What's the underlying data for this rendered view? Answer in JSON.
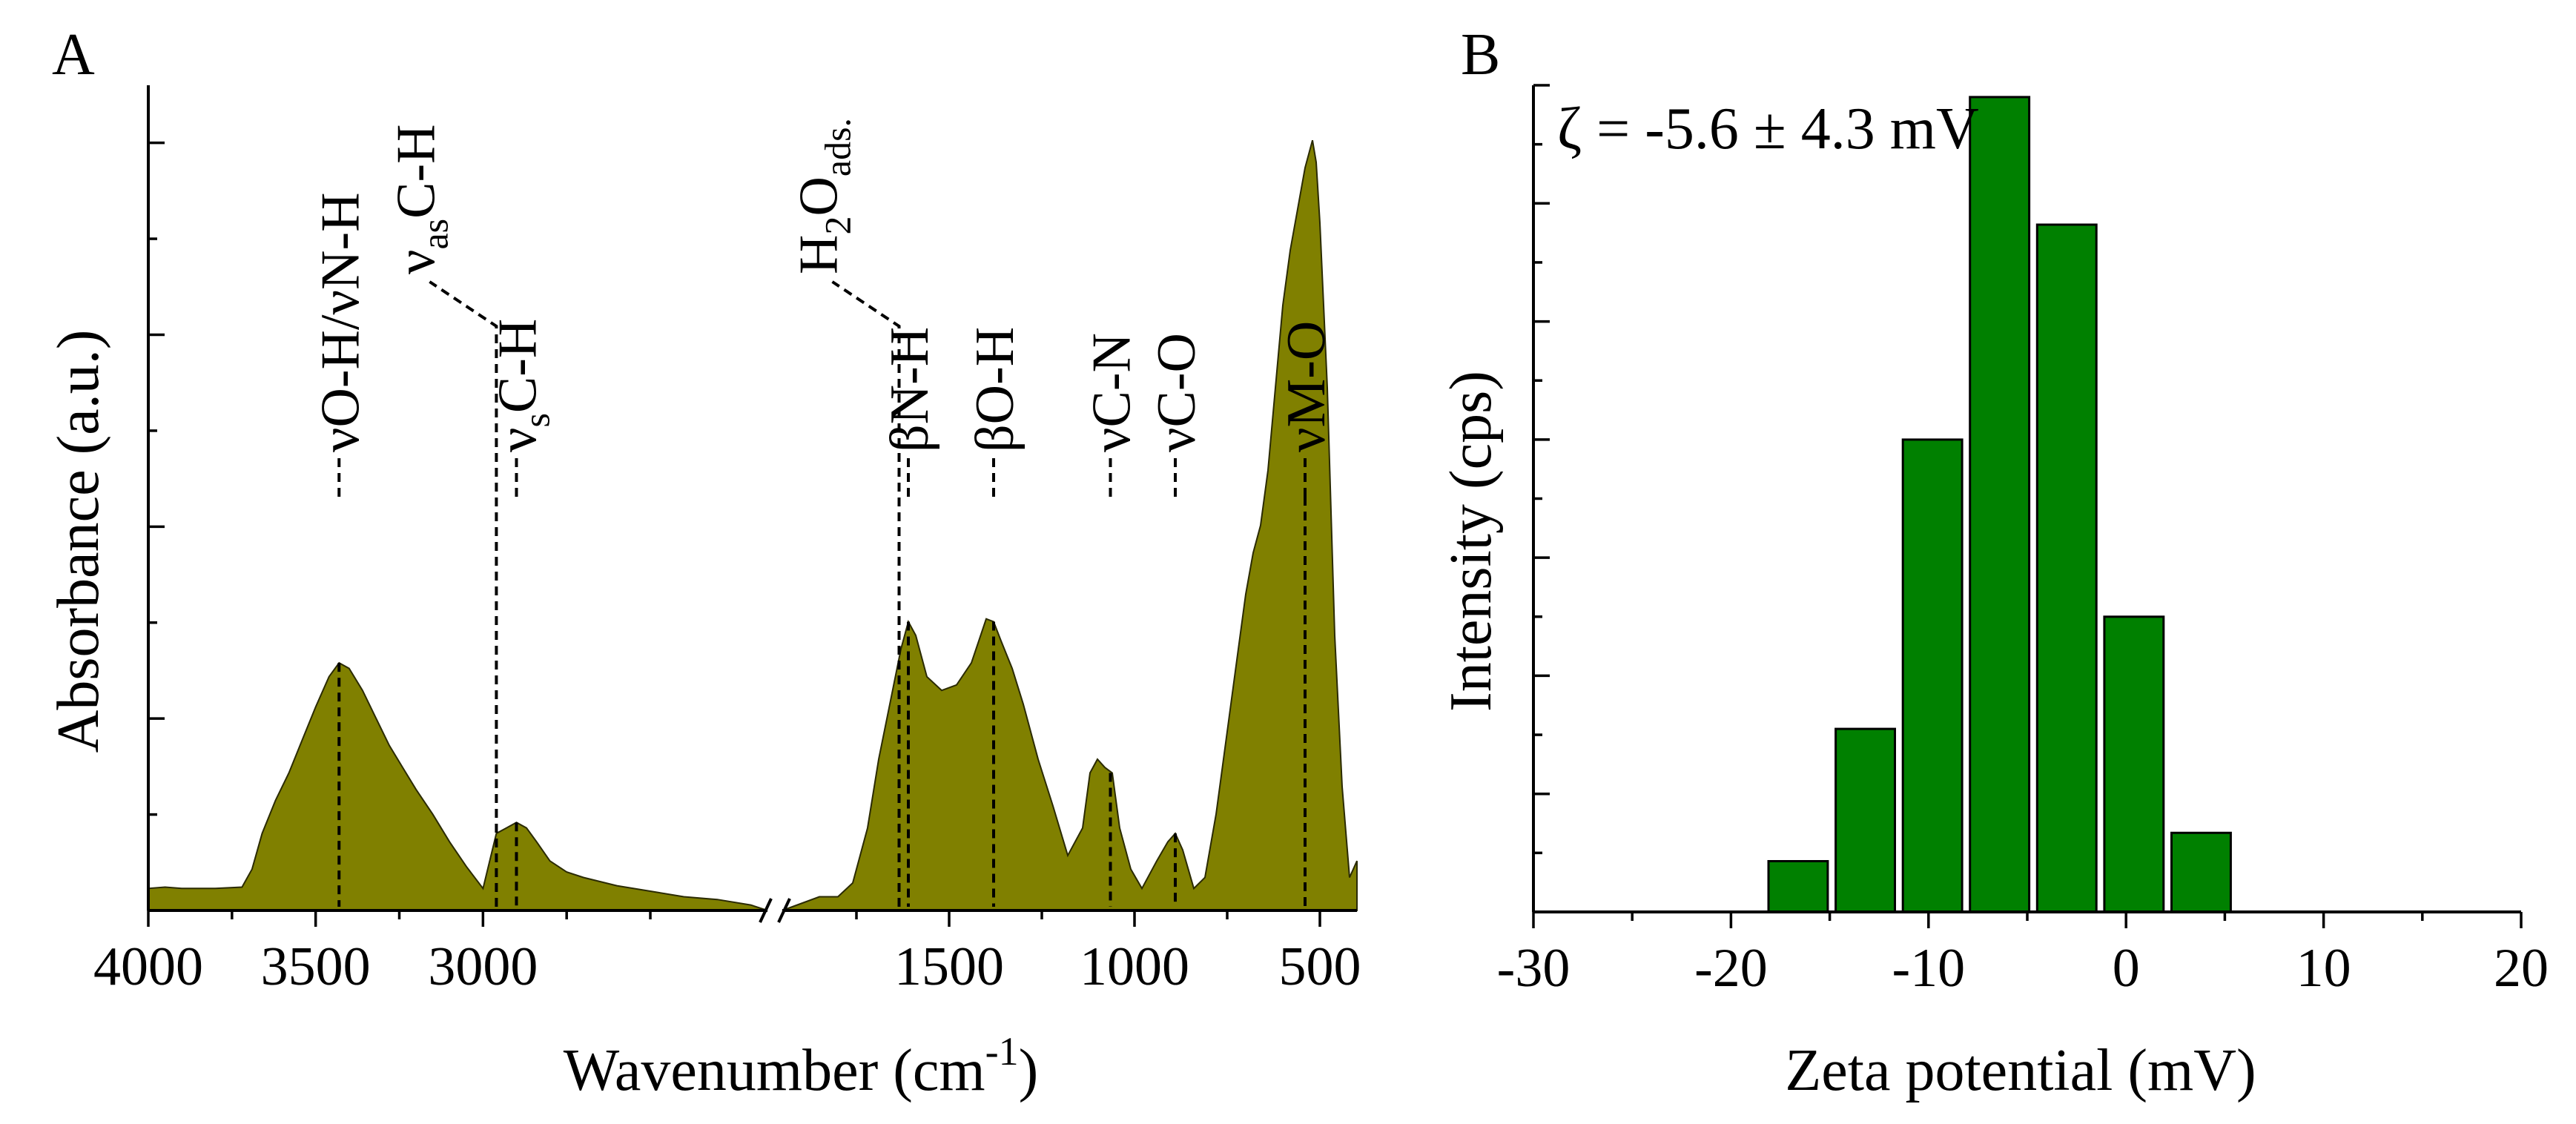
{
  "chart_data": [
    {
      "panel_label": "A",
      "type": "area",
      "xlabel": "Wavenumber (cm",
      "xlabel_sup": "-1",
      "xlabel_tail": ")",
      "ylabel": "Absorbance (a.u.)",
      "x_reversed": true,
      "x_axis_break": true,
      "segments": [
        {
          "xlim": [
            4000,
            2150
          ]
        },
        {
          "xlim": [
            1950,
            400
          ]
        }
      ],
      "xticks": [
        4000,
        3500,
        3000,
        1500,
        1000,
        500
      ],
      "fill_color": "#808000",
      "series": [
        {
          "x": [
            4000,
            3950,
            3900,
            3800,
            3720,
            3690,
            3660,
            3620,
            3580,
            3540,
            3500,
            3460,
            3430,
            3400,
            3360,
            3320,
            3280,
            3240,
            3200,
            3150,
            3100,
            3050,
            3000,
            2960,
            2930,
            2900,
            2870,
            2840,
            2800,
            2750,
            2700,
            2600,
            2500,
            2400,
            2300,
            2200,
            2150
          ],
          "y": [
            0.08,
            0.085,
            0.08,
            0.08,
            0.085,
            0.15,
            0.28,
            0.4,
            0.5,
            0.62,
            0.74,
            0.85,
            0.9,
            0.88,
            0.8,
            0.7,
            0.6,
            0.52,
            0.44,
            0.35,
            0.25,
            0.16,
            0.08,
            0.28,
            0.3,
            0.32,
            0.3,
            0.25,
            0.18,
            0.14,
            0.12,
            0.09,
            0.07,
            0.05,
            0.04,
            0.02,
            0.0
          ]
        },
        {
          "x": [
            1950,
            1850,
            1800,
            1760,
            1720,
            1690,
            1660,
            1630,
            1610,
            1590,
            1560,
            1520,
            1480,
            1440,
            1420,
            1400,
            1380,
            1360,
            1330,
            1300,
            1260,
            1220,
            1180,
            1140,
            1120,
            1100,
            1080,
            1060,
            1040,
            1010,
            980,
            940,
            910,
            890,
            870,
            840,
            810,
            780,
            750,
            720,
            700,
            680,
            660,
            640,
            620,
            600,
            580,
            560,
            540,
            520,
            510,
            500,
            480,
            460,
            440,
            420,
            400
          ],
          "y": [
            0.0,
            0.05,
            0.05,
            0.1,
            0.3,
            0.55,
            0.75,
            0.95,
            1.05,
            1.0,
            0.85,
            0.8,
            0.82,
            0.9,
            0.98,
            1.06,
            1.05,
            0.98,
            0.88,
            0.75,
            0.55,
            0.38,
            0.2,
            0.3,
            0.5,
            0.55,
            0.52,
            0.5,
            0.3,
            0.15,
            0.08,
            0.18,
            0.25,
            0.28,
            0.22,
            0.08,
            0.12,
            0.35,
            0.65,
            0.95,
            1.15,
            1.3,
            1.4,
            1.6,
            1.9,
            2.2,
            2.4,
            2.55,
            2.7,
            2.8,
            2.72,
            2.5,
            1.9,
            1.0,
            0.45,
            0.12,
            0.18
          ]
        }
      ],
      "annotations": [
        {
          "label": "νO-H/νN-H",
          "x": 3430,
          "y": 0.9,
          "bend": false
        },
        {
          "label_main": "ν",
          "label_sub": "as",
          "label_tail": "C-H",
          "x": 2960,
          "y": 0.08,
          "bend": true
        },
        {
          "label_main": "ν",
          "label_sub": "s",
          "label_tail": "C-H",
          "x": 2900,
          "y": 0.32,
          "bend": false
        },
        {
          "label_main": "H",
          "label_sub": "2",
          "label_tail": "O",
          "label_sub2": "ads.",
          "x": 1635,
          "y": 0.05,
          "bend": true
        },
        {
          "label": "βN-H",
          "x": 1610,
          "y": 1.05,
          "bend": false
        },
        {
          "label": "βO-H",
          "x": 1380,
          "y": 1.05,
          "bend": false
        },
        {
          "label": "νC-N",
          "x": 1065,
          "y": 0.5,
          "bend": false
        },
        {
          "label": "νC-O",
          "x": 890,
          "y": 0.28,
          "bend": false
        },
        {
          "label": "νM-O",
          "x": 540,
          "y": 2.7,
          "bend": false
        }
      ]
    },
    {
      "panel_label": "B",
      "type": "bar",
      "xlabel": "Zeta potential (mV)",
      "ylabel": "Intensity (cps)",
      "annotation": "ζ = -5.6 ± 4.3 mV",
      "xlim": [
        -30,
        20
      ],
      "xticks": [
        -30,
        -20,
        -10,
        0,
        10,
        20
      ],
      "ylim": [
        0,
        7.0
      ],
      "bar_color": "#008000",
      "bar_width": 3.0,
      "bars": [
        {
          "x": -16.6,
          "value": 0.43
        },
        {
          "x": -13.2,
          "value": 1.55
        },
        {
          "x": -9.8,
          "value": 4.0
        },
        {
          "x": -6.4,
          "value": 6.9
        },
        {
          "x": -3.0,
          "value": 5.82
        },
        {
          "x": 0.4,
          "value": 2.5
        },
        {
          "x": 3.8,
          "value": 0.67
        }
      ]
    }
  ]
}
